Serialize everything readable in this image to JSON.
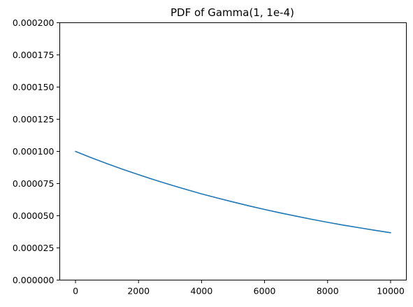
{
  "chart_data": {
    "type": "line",
    "title": "PDF of Gamma(1, 1e-4)",
    "xlabel": "",
    "ylabel": "",
    "xlim": [
      -500,
      10500
    ],
    "ylim": [
      0,
      0.0002
    ],
    "x_ticks": [
      0,
      2000,
      4000,
      6000,
      8000,
      10000
    ],
    "x_tick_labels": [
      "0",
      "2000",
      "4000",
      "6000",
      "8000",
      "10000"
    ],
    "y_ticks": [
      0,
      2.5e-05,
      5e-05,
      7.5e-05,
      0.0001,
      0.000125,
      0.00015,
      0.000175,
      0.0002
    ],
    "y_tick_labels": [
      "0.000000",
      "0.000025",
      "0.000050",
      "0.000075",
      "0.000100",
      "0.000125",
      "0.000150",
      "0.000175",
      "0.000200"
    ],
    "grid": false,
    "series": [
      {
        "color": "#1f77b4",
        "x": [
          0,
          500,
          1000,
          1500,
          2000,
          2500,
          3000,
          3500,
          4000,
          4500,
          5000,
          5500,
          6000,
          6500,
          7000,
          7500,
          8000,
          8500,
          9000,
          9500,
          10000
        ],
        "y": [
          0.0001,
          9.51e-05,
          9.05e-05,
          8.61e-05,
          8.19e-05,
          7.79e-05,
          7.41e-05,
          7.05e-05,
          6.7e-05,
          6.38e-05,
          6.07e-05,
          5.77e-05,
          5.49e-05,
          5.22e-05,
          4.97e-05,
          4.72e-05,
          4.49e-05,
          4.27e-05,
          4.07e-05,
          3.87e-05,
          3.68e-05
        ]
      }
    ]
  }
}
